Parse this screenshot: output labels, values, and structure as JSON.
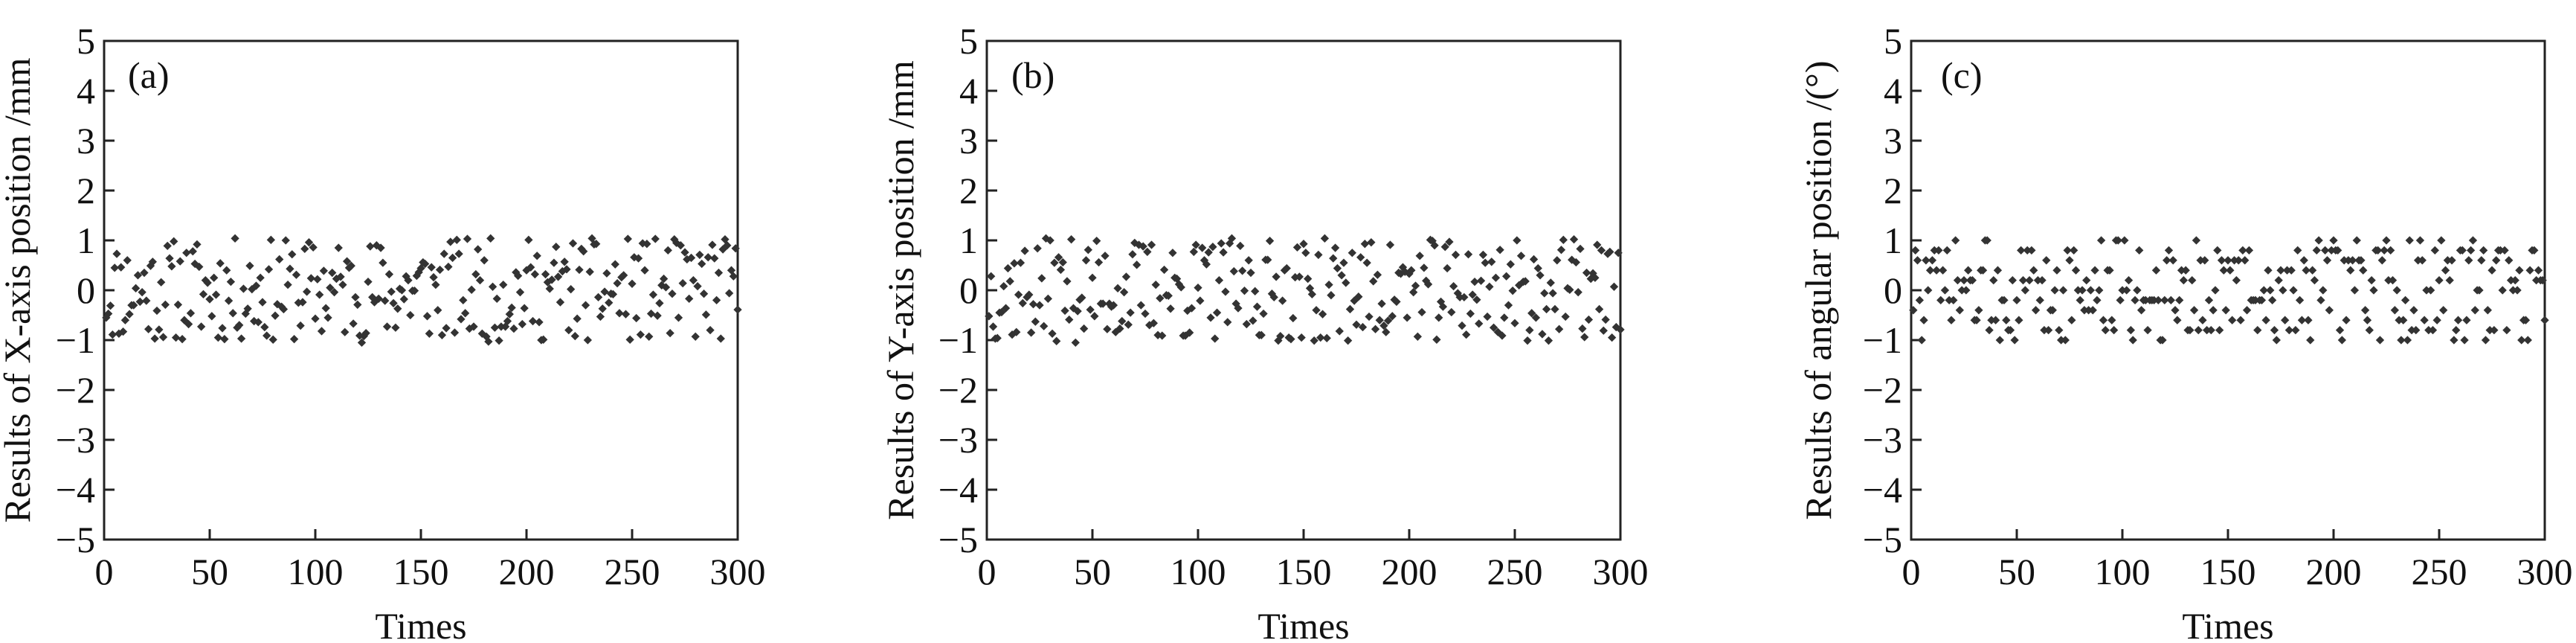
{
  "figure": {
    "panel_count": 3
  },
  "chart_data": [
    {
      "type": "scatter",
      "panel_label": "(a)",
      "xlabel": "Times",
      "ylabel": "Results of X-axis position /mm",
      "xlim": [
        0,
        300
      ],
      "ylim": [
        -5,
        5
      ],
      "xticks": [
        0,
        50,
        100,
        150,
        200,
        250,
        300
      ],
      "yticks": [
        -5,
        -4,
        -3,
        -2,
        -1,
        0,
        1,
        2,
        3,
        4,
        5
      ],
      "grid": false,
      "point_color": "#333333",
      "n_points": 300,
      "series": [
        {
          "x_start": 1,
          "x_step": 1,
          "y": []
        }
      ]
    },
    {
      "type": "scatter",
      "panel_label": "(b)",
      "xlabel": "Times",
      "ylabel": "Results of Y-axis position /mm",
      "xlim": [
        0,
        300
      ],
      "ylim": [
        -5,
        5
      ],
      "xticks": [
        0,
        50,
        100,
        150,
        200,
        250,
        300
      ],
      "yticks": [
        -5,
        -4,
        -3,
        -2,
        -1,
        0,
        1,
        2,
        3,
        4,
        5
      ],
      "grid": false,
      "point_color": "#333333",
      "n_points": 300,
      "series": [
        {
          "x_start": 1,
          "x_step": 1,
          "y": []
        }
      ]
    },
    {
      "type": "scatter",
      "panel_label": "(c)",
      "xlabel": "Times",
      "ylabel": "Results of angular position /(°)",
      "xlim": [
        0,
        300
      ],
      "ylim": [
        -5,
        5
      ],
      "xticks": [
        0,
        50,
        100,
        150,
        200,
        250,
        300
      ],
      "yticks": [
        -5,
        -4,
        -3,
        -2,
        -1,
        0,
        1,
        2,
        3,
        4,
        5
      ],
      "grid": false,
      "point_color": "#333333",
      "n_points": 300,
      "series": [
        {
          "x_start": 1,
          "x_step": 1,
          "y": []
        }
      ]
    }
  ]
}
